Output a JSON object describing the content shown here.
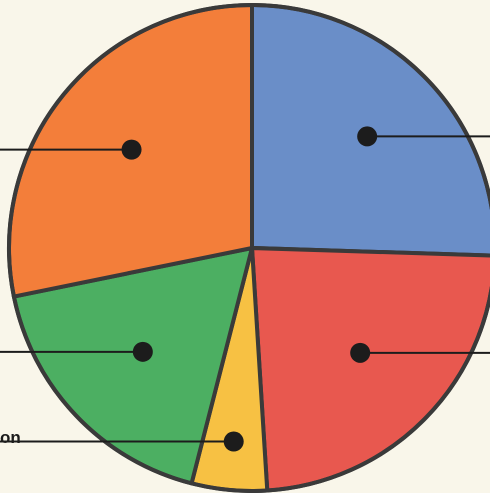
{
  "chart_data": {
    "type": "pie",
    "slices": [
      {
        "label": "",
        "value": 25.5,
        "color": "#6a8ec8"
      },
      {
        "label": "",
        "value": 23.5,
        "color": "#e8584f"
      },
      {
        "label": "",
        "value": 5.0,
        "color": "#f7c143"
      },
      {
        "label": "",
        "value": 17.8,
        "color": "#4caf62"
      },
      {
        "label": "",
        "value": 28.2,
        "color": "#f37e3a"
      }
    ],
    "visible_label_fragments": [
      {
        "slice": 2,
        "text": "on"
      }
    ],
    "start_angle_deg": 0,
    "direction": "clockwise",
    "legend": "none",
    "title": ""
  }
}
